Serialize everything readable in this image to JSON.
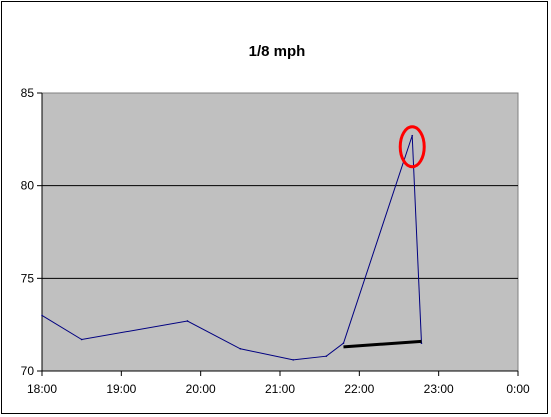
{
  "chart_data": {
    "type": "line",
    "title": "1/8 mph",
    "xlabel": "",
    "ylabel": "",
    "x_ticks": [
      "18:00",
      "19:00",
      "20:00",
      "21:00",
      "22:00",
      "23:00",
      "0:00"
    ],
    "y_ticks": [
      "70",
      "75",
      "80",
      "85"
    ],
    "xlim_hours": [
      18,
      24
    ],
    "ylim": [
      70,
      85
    ],
    "grid": "horizontal",
    "legend": "none",
    "plot_background": "#c0c0c0",
    "series": [
      {
        "color": "#000080",
        "points": [
          {
            "x": "18:00",
            "y": 73.0
          },
          {
            "x": "18:30",
            "y": 71.7
          },
          {
            "x": "19:50",
            "y": 72.7
          },
          {
            "x": "20:30",
            "y": 71.2
          },
          {
            "x": "21:10",
            "y": 70.6
          },
          {
            "x": "21:35",
            "y": 70.8
          },
          {
            "x": "21:48",
            "y": 71.5
          },
          {
            "x": "22:40",
            "y": 82.7
          },
          {
            "x": "22:47",
            "y": 71.5
          }
        ]
      }
    ],
    "annotations": [
      {
        "kind": "line",
        "color": "#000000",
        "from": {
          "x": "21:48",
          "y": 71.3
        },
        "to": {
          "x": "22:47",
          "y": 71.6
        }
      },
      {
        "kind": "ellipse",
        "color": "#ff0000",
        "center": {
          "x": "22:40",
          "y": 82.1
        }
      }
    ]
  }
}
